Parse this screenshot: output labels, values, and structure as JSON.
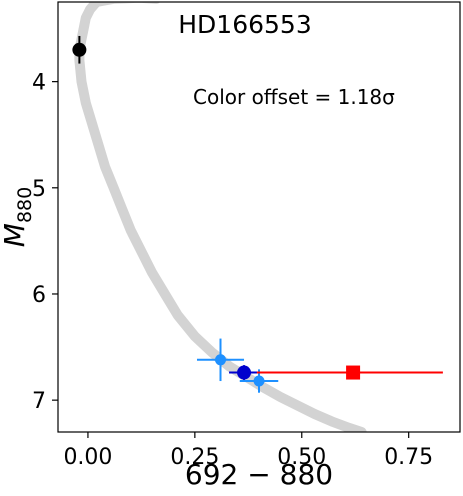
{
  "chart_data": {
    "type": "scatter",
    "title": "HD166553",
    "annotation": "Color offset = 1.18σ",
    "xlabel": "692 − 880",
    "ylabel": "M",
    "ylabel_subscript": "880",
    "xlim": [
      -0.07,
      0.87
    ],
    "ylim": [
      7.3,
      3.25
    ],
    "y_inverted": true,
    "grid": false,
    "x_ticks": [
      {
        "value": 0.0,
        "label": "0.00"
      },
      {
        "value": 0.25,
        "label": "0.25"
      },
      {
        "value": 0.5,
        "label": "0.50"
      },
      {
        "value": 0.75,
        "label": "0.75"
      }
    ],
    "y_ticks": [
      {
        "value": 4,
        "label": "4"
      },
      {
        "value": 5,
        "label": "5"
      },
      {
        "value": 6,
        "label": "6"
      },
      {
        "value": 7,
        "label": "7"
      }
    ],
    "isochrone": {
      "color": "#d3d3d3",
      "points": [
        [
          0.02,
          3.25
        ],
        [
          0.005,
          3.32
        ],
        [
          -0.005,
          3.4
        ],
        [
          -0.01,
          3.5
        ],
        [
          -0.015,
          3.6
        ],
        [
          -0.02,
          3.7
        ],
        [
          -0.02,
          3.8
        ],
        [
          -0.015,
          4.0
        ],
        [
          -0.005,
          4.2
        ],
        [
          0.01,
          4.4
        ],
        [
          0.025,
          4.6
        ],
        [
          0.04,
          4.8
        ],
        [
          0.06,
          5.0
        ],
        [
          0.08,
          5.2
        ],
        [
          0.1,
          5.4
        ],
        [
          0.125,
          5.6
        ],
        [
          0.15,
          5.8
        ],
        [
          0.18,
          6.0
        ],
        [
          0.21,
          6.2
        ],
        [
          0.25,
          6.4
        ],
        [
          0.29,
          6.55
        ],
        [
          0.33,
          6.68
        ],
        [
          0.37,
          6.78
        ],
        [
          0.41,
          6.88
        ],
        [
          0.45,
          6.97
        ],
        [
          0.49,
          7.05
        ],
        [
          0.53,
          7.13
        ],
        [
          0.57,
          7.2
        ],
        [
          0.61,
          7.26
        ],
        [
          0.64,
          7.3
        ]
      ],
      "hook": [
        [
          0.02,
          3.25
        ],
        [
          0.06,
          3.22
        ],
        [
          0.12,
          3.21
        ],
        [
          0.16,
          3.22
        ]
      ]
    },
    "points": [
      {
        "x": -0.02,
        "y": 3.7,
        "xerr": 0.0,
        "yerr": 0.13,
        "color": "#000000",
        "marker": "circle",
        "size": 7
      },
      {
        "x": 0.31,
        "y": 6.62,
        "xerr": 0.055,
        "yerr": 0.2,
        "color": "#1e90ff",
        "marker": "circle",
        "size": 5.5
      },
      {
        "x": 0.4,
        "y": 6.82,
        "xerr": 0.045,
        "yerr": 0.11,
        "color": "#1e90ff",
        "marker": "circle",
        "size": 5.5
      },
      {
        "x": 0.365,
        "y": 6.74,
        "xerr": 0.035,
        "yerr": 0.07,
        "color": "#0000cd",
        "marker": "circle",
        "size": 7
      },
      {
        "x": 0.62,
        "y": 6.74,
        "xerr_low": 0.225,
        "xerr_high": 0.21,
        "yerr": 0.06,
        "color": "#ff0000",
        "marker": "square",
        "size": 7
      }
    ]
  }
}
